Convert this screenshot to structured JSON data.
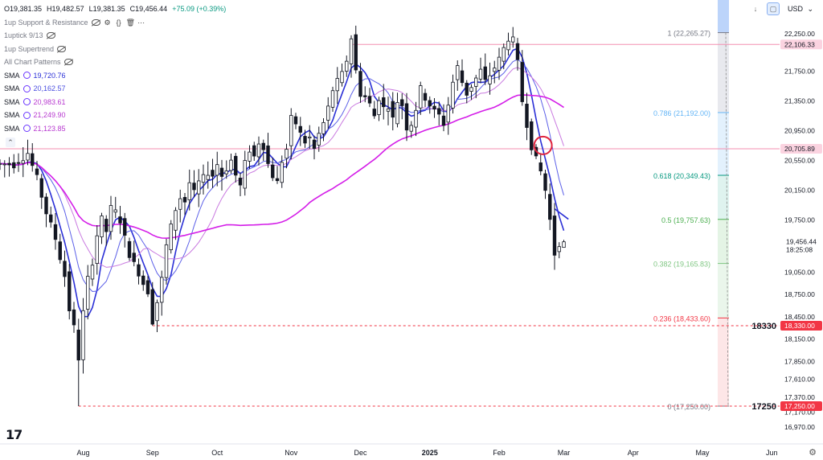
{
  "legend": {
    "ohlc": {
      "o": "O19,381.35",
      "h": "H19,482.57",
      "l": "L19,381.35",
      "c": "C19,456.44",
      "chg": "+75.09 (+0.39%)"
    },
    "indicators": [
      "1up Support & Resistance",
      "1uptick 9/13",
      "1up Supertrend",
      "All Chart Patterns"
    ],
    "smas": [
      {
        "label": "SMA",
        "value": "19,720.76",
        "color": "#2a2fd6"
      },
      {
        "label": "SMA",
        "value": "20,162.57",
        "color": "#4b4fe0"
      },
      {
        "label": "SMA",
        "value": "20,983.61",
        "color": "#b83ad0"
      },
      {
        "label": "SMA",
        "value": "21,249.90",
        "color": "#b83ad0"
      },
      {
        "label": "SMA",
        "value": "21,123.85",
        "color": "#b83ad0"
      }
    ]
  },
  "toolbar": {
    "currency": "USD",
    "arrow_icon": "down-arrow-icon"
  },
  "chart_data": {
    "type": "candlestick",
    "ylim": [
      16970,
      22500
    ],
    "yticks": [
      {
        "v": 22250,
        "label": "22,250.00"
      },
      {
        "v": 21750,
        "label": "21,750.00"
      },
      {
        "v": 21350,
        "label": "21,350.00"
      },
      {
        "v": 20950,
        "label": "20,950.00"
      },
      {
        "v": 20550,
        "label": "20,550.00"
      },
      {
        "v": 20150,
        "label": "20,150.00"
      },
      {
        "v": 19750,
        "label": "19,750.00"
      },
      {
        "v": 19050,
        "label": "19,050.00"
      },
      {
        "v": 18750,
        "label": "18,750.00"
      },
      {
        "v": 18450,
        "label": "18,450.00"
      },
      {
        "v": 18150,
        "label": "18,150.00"
      },
      {
        "v": 17850,
        "label": "17,850.00"
      },
      {
        "v": 17610,
        "label": "17,610.00"
      },
      {
        "v": 17370,
        "label": "17,370.00"
      },
      {
        "v": 17170,
        "label": "17,170.00"
      },
      {
        "v": 16970,
        "label": "16,970.00"
      }
    ],
    "xlabels": [
      {
        "t": 2,
        "label": "Aug",
        "bold": false
      },
      {
        "t": 17,
        "label": "Sep",
        "bold": false
      },
      {
        "t": 31,
        "label": "Oct",
        "bold": false
      },
      {
        "t": 47,
        "label": "Nov",
        "bold": false
      },
      {
        "t": 62,
        "label": "Dec",
        "bold": false
      },
      {
        "t": 77,
        "label": "2025",
        "bold": true
      },
      {
        "t": 92,
        "label": "Feb",
        "bold": false
      },
      {
        "t": 106,
        "label": "Mar",
        "bold": false
      },
      {
        "t": 121,
        "label": "Apr",
        "bold": false
      },
      {
        "t": 136,
        "label": "May",
        "bold": false
      },
      {
        "t": 151,
        "label": "Jun",
        "bold": false
      }
    ],
    "anchors": [
      [
        -13,
        20500
      ],
      [
        -10,
        20650
      ],
      [
        -8,
        20300
      ],
      [
        -6,
        19850
      ],
      [
        -4,
        19500
      ],
      [
        -2,
        19000
      ],
      [
        -1,
        18550
      ],
      [
        0,
        18300
      ],
      [
        1,
        17900
      ],
      [
        2,
        18500
      ],
      [
        3,
        18950
      ],
      [
        4,
        19200
      ],
      [
        5,
        19550
      ],
      [
        6,
        19750
      ],
      [
        7,
        19600
      ],
      [
        8,
        19900
      ],
      [
        9,
        19850
      ],
      [
        10,
        19750
      ],
      [
        11,
        19500
      ],
      [
        12,
        19300
      ],
      [
        13,
        19150
      ],
      [
        14,
        19050
      ],
      [
        15,
        18900
      ],
      [
        16,
        18800
      ],
      [
        17,
        18400
      ],
      [
        18,
        18650
      ],
      [
        19,
        18950
      ],
      [
        20,
        19400
      ],
      [
        21,
        19650
      ],
      [
        22,
        19900
      ],
      [
        23,
        20050
      ],
      [
        24,
        20000
      ],
      [
        25,
        20250
      ],
      [
        26,
        20100
      ],
      [
        27,
        20250
      ],
      [
        28,
        20300
      ],
      [
        29,
        20400
      ],
      [
        30,
        20350
      ],
      [
        31,
        20500
      ],
      [
        32,
        20350
      ],
      [
        33,
        20450
      ],
      [
        34,
        20550
      ],
      [
        35,
        20350
      ],
      [
        36,
        20200
      ],
      [
        37,
        20500
      ],
      [
        38,
        20700
      ],
      [
        39,
        20600
      ],
      [
        40,
        20800
      ],
      [
        41,
        20750
      ],
      [
        42,
        20500
      ],
      [
        43,
        20350
      ],
      [
        44,
        20250
      ],
      [
        45,
        20550
      ],
      [
        46,
        20700
      ],
      [
        47,
        21100
      ],
      [
        48,
        21050
      ],
      [
        49,
        20900
      ],
      [
        50,
        20800
      ],
      [
        51,
        20850
      ],
      [
        52,
        20700
      ],
      [
        53,
        20900
      ],
      [
        54,
        21050
      ],
      [
        55,
        21250
      ],
      [
        56,
        21500
      ],
      [
        57,
        21600
      ],
      [
        58,
        21700
      ],
      [
        59,
        21900
      ],
      [
        60,
        22200
      ],
      [
        61,
        21750
      ],
      [
        62,
        21450
      ],
      [
        63,
        21400
      ],
      [
        64,
        21300
      ],
      [
        65,
        21150
      ],
      [
        66,
        21400
      ],
      [
        67,
        21250
      ],
      [
        68,
        21300
      ],
      [
        69,
        21100
      ],
      [
        70,
        21350
      ],
      [
        71,
        21300
      ],
      [
        72,
        21000
      ],
      [
        73,
        21050
      ],
      [
        74,
        21250
      ],
      [
        75,
        21500
      ],
      [
        76,
        21400
      ],
      [
        77,
        21300
      ],
      [
        78,
        21200
      ],
      [
        79,
        21150
      ],
      [
        80,
        21050
      ],
      [
        81,
        21300
      ],
      [
        82,
        21600
      ],
      [
        83,
        21800
      ],
      [
        84,
        21600
      ],
      [
        85,
        21450
      ],
      [
        86,
        21550
      ],
      [
        87,
        21650
      ],
      [
        88,
        21750
      ],
      [
        89,
        21600
      ],
      [
        90,
        21700
      ],
      [
        91,
        21800
      ],
      [
        92,
        21900
      ],
      [
        93,
        22050
      ],
      [
        94,
        22200
      ],
      [
        95,
        22150
      ],
      [
        96,
        21850
      ],
      [
        97,
        21350
      ],
      [
        98,
        21050
      ],
      [
        99,
        20750
      ],
      [
        100,
        20550
      ],
      [
        101,
        20400
      ],
      [
        102,
        20150
      ],
      [
        103,
        19750
      ],
      [
        104,
        19300
      ],
      [
        105,
        19450
      ]
    ],
    "fib": {
      "levels": [
        {
          "ratio": "1",
          "value": 22265.27,
          "label": "1 (22,265.27)",
          "color": "#787b86"
        },
        {
          "ratio": "0.786",
          "value": 21192.0,
          "label": "0.786 (21,192.00)",
          "color": "#64b5f6"
        },
        {
          "ratio": "0.618",
          "value": 20349.43,
          "label": "0.618 (20,349.43)",
          "color": "#089981"
        },
        {
          "ratio": "0.5",
          "value": 19757.63,
          "label": "0.5 (19,757.63)",
          "color": "#4caf50"
        },
        {
          "ratio": "0.382",
          "value": 19165.83,
          "label": "0.382 (19,165.83)",
          "color": "#81c784"
        },
        {
          "ratio": "0.236",
          "value": 18433.6,
          "label": "0.236 (18,433.60)",
          "color": "#f23645"
        },
        {
          "ratio": "0",
          "value": 17250.0,
          "label": "0 (17,250.00)",
          "color": "#787b86"
        }
      ]
    },
    "hlines": [
      {
        "value": 22106.33,
        "label": "22,106.33",
        "color": "#f48fb1",
        "style": "solid"
      },
      {
        "value": 20705.89,
        "label": "20,705.89",
        "color": "#f48fb1",
        "style": "solid"
      },
      {
        "value": 18330.0,
        "label": "18,330.00",
        "color": "#f23645",
        "style": "dashed",
        "name": "18330"
      },
      {
        "value": 17250.0,
        "label": "17,250.00",
        "color": "#f23645",
        "style": "dashed",
        "name": "17250"
      }
    ],
    "last_price": {
      "value": 19456.44,
      "label": "19,456.44",
      "countdown": "18:25:08"
    },
    "circle_marker": {
      "t": 101.5,
      "value": 20750
    }
  }
}
